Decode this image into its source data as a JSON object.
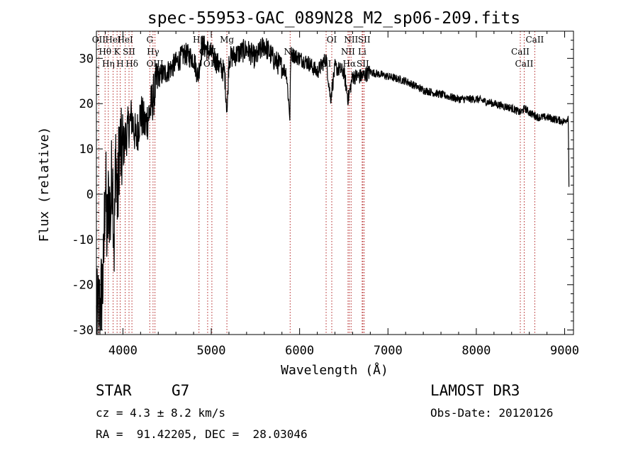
{
  "chart_data": {
    "type": "line",
    "title": "spec-55953-GAC_089N28_M2_sp06-209.fits",
    "xlabel": "Wavelength (Å)",
    "ylabel": "Flux (relative)",
    "xlim": [
      3700,
      9100
    ],
    "ylim": [
      -31,
      36
    ],
    "xticks": [
      4000,
      5000,
      6000,
      7000,
      8000,
      9000
    ],
    "yticks": [
      -30,
      -20,
      -10,
      0,
      10,
      20,
      30
    ],
    "grid": false,
    "series": [
      {
        "name": "flux",
        "x": [
          3700,
          3740,
          3780,
          3800,
          3820,
          3840,
          3860,
          3880,
          3900,
          3920,
          3940,
          3960,
          3980,
          4000,
          4050,
          4100,
          4150,
          4200,
          4250,
          4300,
          4350,
          4400,
          4500,
          4600,
          4700,
          4800,
          4850,
          4900,
          5000,
          5100,
          5150,
          5180,
          5200,
          5300,
          5400,
          5500,
          5600,
          5700,
          5800,
          5850,
          5890,
          5900,
          6000,
          6100,
          6200,
          6300,
          6350,
          6400,
          6500,
          6550,
          6600,
          6700,
          6800,
          7000,
          7200,
          7400,
          7600,
          7800,
          8000,
          8200,
          8400,
          8500,
          8550,
          8600,
          8700,
          8800,
          9000,
          9040,
          9045,
          9050
        ],
        "values": [
          -28,
          -25,
          -18,
          5,
          -10,
          0,
          -5,
          8,
          -12,
          10,
          -3,
          12,
          8,
          10,
          14,
          17,
          12,
          18,
          15,
          18,
          22,
          26,
          27,
          29,
          31,
          30,
          26,
          33,
          31,
          28,
          27,
          18,
          30,
          31,
          32,
          30,
          33,
          30,
          28,
          27,
          17,
          31,
          30,
          29,
          27,
          30,
          21,
          28,
          27,
          21,
          26,
          26,
          27,
          26,
          25,
          23,
          22,
          21,
          21,
          20,
          19,
          18,
          19,
          18,
          17,
          17,
          16,
          17,
          10,
          0
        ]
      }
    ],
    "lines": [
      {
        "x": 3727,
        "label": "OII"
      },
      {
        "x": 3798,
        "label": "Hθ"
      },
      {
        "x": 3835,
        "label": "Hη"
      },
      {
        "x": 3889,
        "label": "HeI"
      },
      {
        "x": 3934,
        "label": "K"
      },
      {
        "x": 3969,
        "label": "H"
      },
      {
        "x": 4026,
        "label": "HeI"
      },
      {
        "x": 4069,
        "label": "SII"
      },
      {
        "x": 4102,
        "label": "Hδ"
      },
      {
        "x": 4304,
        "label": "G"
      },
      {
        "x": 4341,
        "label": "Hγ"
      },
      {
        "x": 4363,
        "label": "OIII"
      },
      {
        "x": 4861,
        "label": "Hβ"
      },
      {
        "x": 4959,
        "label": "OIII"
      },
      {
        "x": 5007,
        "label": "OIII"
      },
      {
        "x": 5177,
        "label": "Mg"
      },
      {
        "x": 5893,
        "label": "Na"
      },
      {
        "x": 6300,
        "label": "OI"
      },
      {
        "x": 6364,
        "label": "OI"
      },
      {
        "x": 6548,
        "label": "NII"
      },
      {
        "x": 6563,
        "label": "Hα"
      },
      {
        "x": 6583,
        "label": "NII"
      },
      {
        "x": 6708,
        "label": "Li"
      },
      {
        "x": 6716,
        "label": "SII"
      },
      {
        "x": 6731,
        "label": "SII"
      },
      {
        "x": 8498,
        "label": "CaII"
      },
      {
        "x": 8542,
        "label": "CaII"
      },
      {
        "x": 8662,
        "label": "CaII"
      }
    ]
  },
  "info": {
    "object_class": "STAR",
    "subclass": "G7",
    "survey": "LAMOST DR3",
    "cz": "cz = 4.3 ± 8.2 km/s",
    "obs_date": "Obs-Date: 20120126",
    "coords": "RA =  91.42205, DEC =  28.03046"
  }
}
